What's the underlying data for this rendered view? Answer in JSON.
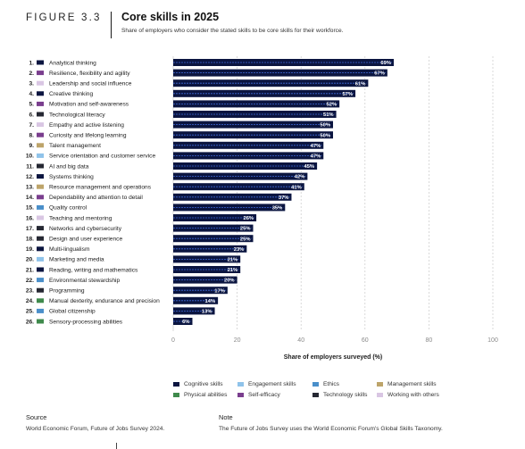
{
  "figure": {
    "label": "FIGURE 3.3",
    "title": "Core skills in 2025",
    "subtitle": "Share of employers who consider the stated skills to be core skills for their workforce."
  },
  "chart_data": {
    "type": "bar",
    "orientation": "horizontal",
    "categories": [
      "Analytical thinking",
      "Resilience, flexibility and agility",
      "Leadership and social influence",
      "Creative thinking",
      "Motivation and self-awareness",
      "Technological literacy",
      "Empathy and active listening",
      "Curiosity and lifelong learning",
      "Talent management",
      "Service orientation and customer service",
      "AI and big data",
      "Systems thinking",
      "Resource management and operations",
      "Dependability and attention to detail",
      "Quality control",
      "Teaching and mentoring",
      "Networks and cybersecurity",
      "Design and user experience",
      "Multi-lingualism",
      "Marketing and media",
      "Reading, writing and mathematics",
      "Environmental stewardship",
      "Programming",
      "Manual dexterity, endurance and precision",
      "Global citizenship",
      "Sensory-processing abilities"
    ],
    "ranks": [
      "1.",
      "2.",
      "3.",
      "4.",
      "5.",
      "6.",
      "7.",
      "8.",
      "9.",
      "10.",
      "11.",
      "12.",
      "13.",
      "14.",
      "15.",
      "16.",
      "17.",
      "18.",
      "19.",
      "20.",
      "21.",
      "22.",
      "23.",
      "24.",
      "25.",
      "26."
    ],
    "values": [
      69,
      67,
      61,
      57,
      52,
      51,
      50,
      50,
      47,
      47,
      45,
      42,
      41,
      37,
      35,
      26,
      25,
      25,
      23,
      21,
      21,
      20,
      17,
      14,
      13,
      6
    ],
    "value_labels": [
      "69%",
      "67%",
      "61%",
      "57%",
      "52%",
      "51%",
      "50%",
      "50%",
      "47%",
      "47%",
      "45%",
      "42%",
      "41%",
      "37%",
      "35%",
      "26%",
      "25%",
      "25%",
      "23%",
      "21%",
      "21%",
      "20%",
      "17%",
      "14%",
      "13%",
      "6%"
    ],
    "skill_group": [
      "cognitive",
      "self-efficacy",
      "working-with-others",
      "cognitive",
      "self-efficacy",
      "technology",
      "working-with-others",
      "self-efficacy",
      "management",
      "engagement",
      "technology",
      "cognitive",
      "management",
      "self-efficacy",
      "ethics",
      "working-with-others",
      "technology",
      "technology",
      "cognitive",
      "engagement",
      "cognitive",
      "ethics",
      "technology",
      "physical",
      "ethics",
      "physical"
    ],
    "xlabel": "Share of employers surveyed (%)",
    "xlim": [
      0,
      100
    ],
    "xticks": [
      0,
      20,
      40,
      60,
      80,
      100
    ],
    "grid": true,
    "bar_color": "#0b1540",
    "bar_stripe_color": "#3f6ad8"
  },
  "legend": {
    "items": [
      {
        "key": "cognitive",
        "label": "Cognitive skills",
        "color": "#0b1540"
      },
      {
        "key": "engagement",
        "label": "Engagement skills",
        "color": "#8fc3ea"
      },
      {
        "key": "ethics",
        "label": "Ethics",
        "color": "#4a8fca"
      },
      {
        "key": "management",
        "label": "Management skills",
        "color": "#bda46a"
      },
      {
        "key": "physical",
        "label": "Physical abilities",
        "color": "#3f8a4c"
      },
      {
        "key": "self-efficacy",
        "label": "Self-efficacy",
        "color": "#7a3e8e"
      },
      {
        "key": "technology",
        "label": "Technology skills",
        "color": "#262833"
      },
      {
        "key": "working-with-others",
        "label": "Working with others",
        "color": "#d9c6e3"
      }
    ]
  },
  "source": {
    "heading": "Source",
    "text": "World Economic Forum, Future of Jobs Survey 2024."
  },
  "note": {
    "heading": "Note",
    "text": "The Future of Jobs Survey uses the World Economic Forum's Global Skills Taxonomy."
  }
}
